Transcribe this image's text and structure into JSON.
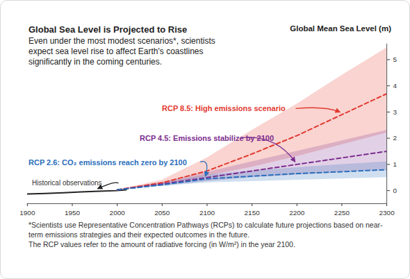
{
  "chart_data": {
    "type": "line",
    "title": "Global Sea Level is Projected to Rise",
    "subtitle": "Even under the most modest scenarios*, scientists expect sea level rise to affect Earth's coastlines significantly in the coming centuries.",
    "y_label": "Global Mean Sea Level (m)",
    "footnote": [
      "*Scientists use Representative Concentration Pathways (RCPs) to calculate future projections based on near-term emissions strategies and their expected outcomes in the future.",
      "The RCP values refer to the amount of radiative forcing (in W/m²) in the year 2100."
    ],
    "xlim": [
      1900,
      2300
    ],
    "xticks": [
      1900,
      1950,
      2000,
      2050,
      2100,
      2150,
      2200,
      2250,
      2300
    ],
    "ylim": [
      -0.5,
      5.6
    ],
    "yticks": [
      0,
      1,
      2,
      3,
      4,
      5
    ],
    "grid": false,
    "series": [
      {
        "name": "Historical observations",
        "color": "#222222",
        "line_style": "solid",
        "x": [
          1900,
          1920,
          1940,
          1960,
          1980,
          2000,
          2010
        ],
        "values": [
          -0.13,
          -0.11,
          -0.08,
          -0.05,
          -0.02,
          0.0,
          0.03
        ]
      },
      {
        "name": "RCP 8.5: High emissions scenario",
        "color": "#e2392f",
        "line_style": "dashed",
        "x": [
          2000,
          2050,
          2100,
          2150,
          2200,
          2250,
          2300
        ],
        "values": [
          0.03,
          0.3,
          0.75,
          1.4,
          2.1,
          2.9,
          3.7
        ],
        "lower": [
          0.03,
          0.22,
          0.55,
          0.9,
          1.3,
          1.75,
          2.2
        ],
        "upper": [
          0.03,
          0.4,
          1.25,
          2.3,
          3.3,
          4.4,
          5.45
        ]
      },
      {
        "name": "RCP 4.5: Emissions stabilize by 2100",
        "color": "#7b2c8e",
        "line_style": "dashed",
        "x": [
          2000,
          2050,
          2100,
          2150,
          2200,
          2250,
          2300
        ],
        "values": [
          0.03,
          0.25,
          0.5,
          0.75,
          1.0,
          1.25,
          1.5
        ],
        "lower": [
          0.03,
          0.18,
          0.35,
          0.5,
          0.6,
          0.7,
          0.8
        ],
        "upper": [
          0.03,
          0.32,
          0.7,
          1.1,
          1.5,
          1.9,
          2.3
        ]
      },
      {
        "name": "RCP 2.6: CO₂ emissions reach zero by 2100",
        "color": "#2a6ebb",
        "line_style": "dashed",
        "x": [
          2000,
          2050,
          2100,
          2150,
          2200,
          2250,
          2300
        ],
        "values": [
          0.03,
          0.22,
          0.45,
          0.55,
          0.65,
          0.72,
          0.8
        ],
        "lower": [
          0.03,
          0.16,
          0.3,
          0.35,
          0.4,
          0.45,
          0.5
        ],
        "upper": [
          0.03,
          0.28,
          0.6,
          0.75,
          0.88,
          1.0,
          1.1
        ]
      }
    ]
  }
}
